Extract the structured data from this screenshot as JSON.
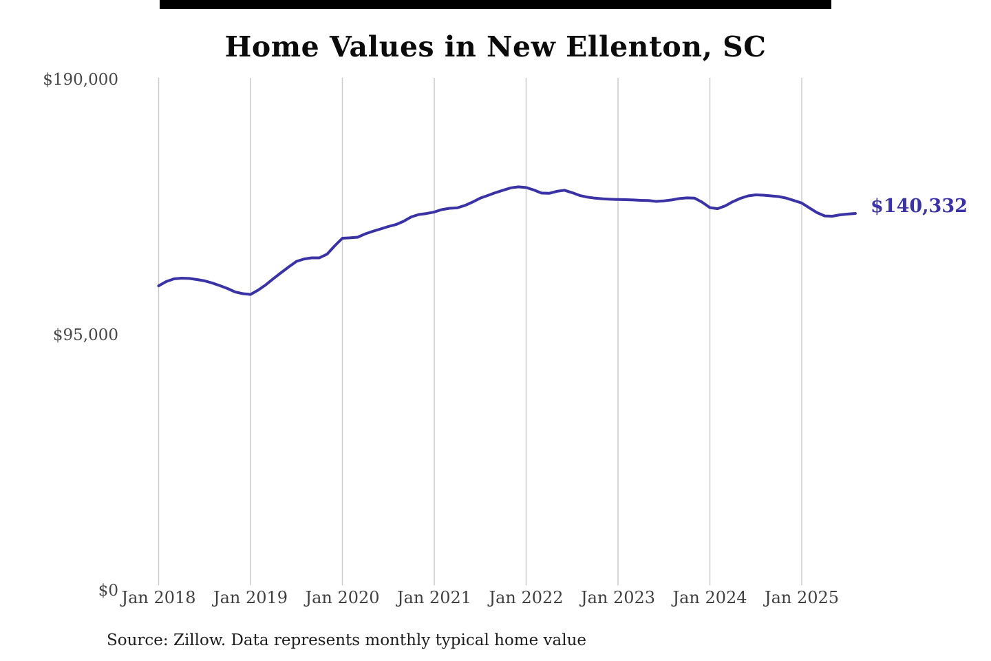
{
  "title": "Home Values in New Ellenton, SC",
  "source_note": "Source: Zillow. Data represents monthly typical home value",
  "end_label": "$140,332",
  "colors": {
    "line": "#3a32a5",
    "end_label": "#3a32a5",
    "grid": "#cccccc",
    "y_axis_text": "#474747",
    "x_axis_text": "#3f3f3f",
    "title_text": "#0b0b0b",
    "source_text": "#1c1c1c",
    "top_bar": "#000000",
    "background": "#ffffff"
  },
  "chart_data": {
    "type": "line",
    "title": "Home Values in New Ellenton, SC",
    "x_unit": "month",
    "x_range": "Jan 2018 through Aug 2025",
    "x_tick_labels": [
      "Jan 2018",
      "Jan 2019",
      "Jan 2020",
      "Jan 2021",
      "Jan 2022",
      "Jan 2023",
      "Jan 2024",
      "Jan 2025"
    ],
    "y_tick_labels": [
      "$0",
      "$95,000",
      "$190,000"
    ],
    "y_ticks": [
      0,
      95000,
      190000
    ],
    "ylim": [
      0,
      190000
    ],
    "grid": "vertical-only",
    "legend": "none",
    "end_value": 140332,
    "end_value_label": "$140,332",
    "series": [
      {
        "name": "Monthly typical home value",
        "values": [
          113400,
          115000,
          116000,
          116250,
          116150,
          115750,
          115250,
          114450,
          113450,
          112400,
          111100,
          110500,
          110200,
          111800,
          113800,
          116100,
          118300,
          120450,
          122500,
          123400,
          123800,
          123800,
          125200,
          128300,
          131100,
          131250,
          131500,
          132750,
          133700,
          134550,
          135450,
          136200,
          137400,
          139050,
          139950,
          140300,
          140850,
          141750,
          142250,
          142400,
          143300,
          144550,
          146000,
          147000,
          148050,
          148950,
          149850,
          150200,
          149950,
          149050,
          147900,
          147800,
          148550,
          148950,
          148050,
          147000,
          146400,
          146000,
          145750,
          145600,
          145500,
          145450,
          145350,
          145200,
          145100,
          144800,
          145000,
          145350,
          145850,
          146100,
          146000,
          144500,
          142500,
          142100,
          143150,
          144700,
          145950,
          146850,
          147250,
          147100,
          146850,
          146600,
          146000,
          145100,
          144200,
          142400,
          140600,
          139400,
          139300,
          139800,
          140100,
          140332
        ]
      }
    ]
  }
}
